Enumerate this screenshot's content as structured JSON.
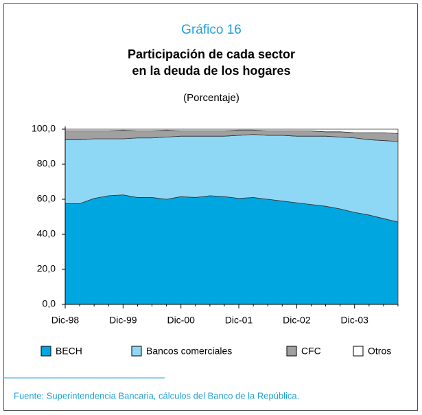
{
  "chart_data": {
    "type": "stacked_area",
    "heading": "Gráfico 16",
    "title": [
      "Participación de cada sector",
      "en la deuda de los hogares"
    ],
    "subtitle": "(Porcentaje)",
    "categories": [
      "Dic-98",
      null,
      null,
      null,
      "Dic-99",
      null,
      null,
      null,
      "Dic-00",
      null,
      null,
      null,
      "Dic-01",
      null,
      null,
      null,
      "Dic-02",
      null,
      null,
      null,
      "Dic-03",
      null,
      null,
      null
    ],
    "series": [
      {
        "name": "BECH",
        "color": "#00a6e0",
        "values": [
          57.5,
          57.5,
          60.5,
          62,
          62.5,
          61,
          61,
          60,
          61.5,
          61,
          62,
          61.5,
          60.5,
          61,
          60,
          59,
          58,
          57,
          56,
          54.5,
          52.5,
          51,
          49,
          47
        ]
      },
      {
        "name": "Bancos comerciales",
        "color": "#8fd8f5",
        "values": [
          36.5,
          36.5,
          34,
          32.5,
          32,
          34,
          34,
          35.5,
          34.5,
          35,
          34,
          34.5,
          36,
          36,
          36.5,
          37.5,
          38,
          39,
          40,
          41,
          42.5,
          43,
          44.5,
          46
        ]
      },
      {
        "name": "CFC",
        "color": "#a0a0a0",
        "values": [
          5,
          5,
          4.5,
          4.5,
          5,
          4,
          4,
          4,
          3,
          3,
          3,
          3,
          3,
          2.5,
          2.5,
          2.5,
          3,
          3,
          2.5,
          3,
          3,
          4,
          4.5,
          4.5
        ]
      },
      {
        "name": "Otros",
        "color": "#ffffff",
        "values": [
          1,
          1,
          1,
          1,
          0.5,
          1,
          1,
          0.5,
          1,
          1,
          1,
          1,
          0.5,
          0.5,
          1,
          1,
          1,
          1,
          1.5,
          1.5,
          2,
          2,
          2,
          2.5
        ]
      }
    ],
    "ylim": [
      0,
      100
    ],
    "yticks": [
      {
        "value": 0,
        "label": "0,0"
      },
      {
        "value": 20,
        "label": "20,0"
      },
      {
        "value": 40,
        "label": "40,0"
      },
      {
        "value": 60,
        "label": "60,0"
      },
      {
        "value": 80,
        "label": "80,0"
      },
      {
        "value": 100,
        "label": "100,0"
      }
    ],
    "source": "Fuente: Superintendencia Bancaria, cálculos del Banco de la República."
  }
}
